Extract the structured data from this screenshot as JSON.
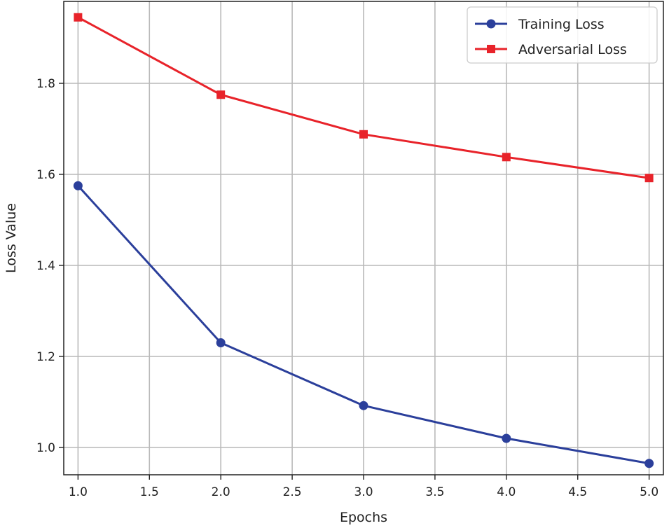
{
  "chart_data": {
    "type": "line",
    "title": "",
    "xlabel": "Epochs",
    "ylabel": "Loss Value",
    "xlim": [
      0.9,
      5.1
    ],
    "ylim": [
      0.94,
      1.98
    ],
    "x_ticks": [
      1.0,
      1.5,
      2.0,
      2.5,
      3.0,
      3.5,
      4.0,
      4.5,
      5.0
    ],
    "x_tick_labels": [
      "1.0",
      "1.5",
      "2.0",
      "2.5",
      "3.0",
      "3.5",
      "4.0",
      "4.5",
      "5.0"
    ],
    "y_ticks": [
      1.0,
      1.2,
      1.4,
      1.6,
      1.8
    ],
    "y_tick_labels": [
      "1.0",
      "1.2",
      "1.4",
      "1.6",
      "1.8"
    ],
    "grid": true,
    "legend_position": "top-right",
    "x": [
      1,
      2,
      3,
      4,
      5
    ],
    "series": [
      {
        "name": "Training Loss",
        "values": [
          1.575,
          1.23,
          1.092,
          1.02,
          0.965
        ],
        "color": "#2b3f9b",
        "marker": "circle"
      },
      {
        "name": "Adversarial Loss",
        "values": [
          1.945,
          1.775,
          1.688,
          1.638,
          1.592
        ],
        "color": "#e8232a",
        "marker": "square"
      }
    ]
  }
}
